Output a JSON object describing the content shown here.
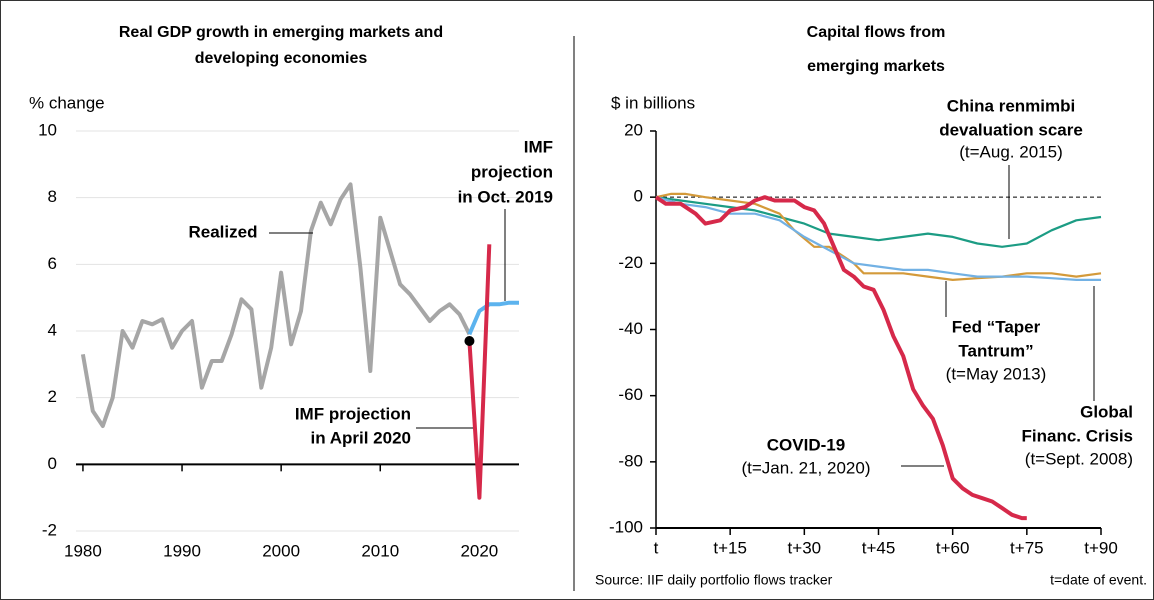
{
  "chart_data": [
    {
      "type": "line",
      "title": [
        "Real GDP growth in emerging markets and",
        "developing economies"
      ],
      "y_label": "% change",
      "xlim": [
        1979.3,
        2024
      ],
      "xticks": [
        1980,
        1990,
        2000,
        2010,
        2020
      ],
      "ylim": [
        -2,
        10
      ],
      "yticks": [
        -2,
        0,
        2,
        4,
        6,
        8,
        10
      ],
      "grid": true,
      "series": [
        {
          "label": [
            "Realized"
          ],
          "color": "#a6a6a6",
          "x": [
            1980,
            1981,
            1982,
            1983,
            1984,
            1985,
            1986,
            1987,
            1988,
            1989,
            1990,
            1991,
            1992,
            1993,
            1994,
            1995,
            1996,
            1997,
            1998,
            1999,
            2000,
            2001,
            2002,
            2003,
            2004,
            2005,
            2006,
            2007,
            2008,
            2009,
            2010,
            2011,
            2012,
            2013,
            2014,
            2015,
            2016,
            2017,
            2018,
            2019
          ],
          "values": [
            3.3,
            1.6,
            1.15,
            2.0,
            4.0,
            3.5,
            4.3,
            4.2,
            4.35,
            3.5,
            4.0,
            4.3,
            2.3,
            3.1,
            3.1,
            3.9,
            4.95,
            4.65,
            2.3,
            3.5,
            5.75,
            3.6,
            4.6,
            7.0,
            7.85,
            7.2,
            7.95,
            8.4,
            5.9,
            2.8,
            7.4,
            6.4,
            5.4,
            5.1,
            4.7,
            4.3,
            4.6,
            4.8,
            4.5,
            3.9
          ]
        },
        {
          "label": [
            "IMF",
            "projection",
            "in Oct. 2019"
          ],
          "color": "#5cb3ee",
          "x": [
            2019,
            2020,
            2021,
            2022,
            2023,
            2024
          ],
          "values": [
            3.9,
            4.6,
            4.8,
            4.8,
            4.85,
            4.85
          ]
        },
        {
          "label": [
            "IMF projection",
            "in April 2020"
          ],
          "color": "#d6294a",
          "x": [
            2019,
            2020,
            2021
          ],
          "values": [
            3.7,
            -1.0,
            6.6
          ]
        }
      ]
    },
    {
      "type": "line",
      "title": [
        "Capital flows from",
        "emerging markets"
      ],
      "y_label": "$ in billions",
      "xlim": [
        0,
        90
      ],
      "xticks": [
        {
          "value": 0,
          "label": "t"
        },
        {
          "value": 15,
          "label": "t+15"
        },
        {
          "value": 30,
          "label": "t+30"
        },
        {
          "value": 45,
          "label": "t+45"
        },
        {
          "value": 60,
          "label": "t+60"
        },
        {
          "value": 75,
          "label": "t+75"
        },
        {
          "value": 90,
          "label": "t+90"
        }
      ],
      "ylim": [
        -100,
        20
      ],
      "yticks": [
        -100,
        -80,
        -60,
        -40,
        -20,
        0,
        20
      ],
      "grid": false,
      "hline": 0,
      "series": [
        {
          "label": [
            "China renmimbi",
            "devaluation scare",
            "(t=Aug. 2015)"
          ],
          "color": "#1c9c84",
          "x": [
            0,
            5,
            10,
            15,
            20,
            25,
            30,
            35,
            40,
            45,
            50,
            55,
            60,
            65,
            70,
            75,
            80,
            85,
            90
          ],
          "values": [
            0,
            -1,
            -2,
            -3,
            -4,
            -6,
            -8,
            -11,
            -12,
            -13,
            -12,
            -11,
            -12,
            -14,
            -15,
            -14,
            -10,
            -7,
            -6
          ]
        },
        {
          "label": [
            "Fed “Taper",
            "Tantrum”",
            "(t=May 2013)"
          ],
          "color": "#d49a3a",
          "x": [
            0,
            3,
            6,
            10,
            15,
            20,
            25,
            28,
            32,
            35,
            38,
            40,
            42,
            44,
            46,
            50,
            55,
            60,
            65,
            70,
            75,
            80,
            85,
            90
          ],
          "values": [
            0,
            1,
            1,
            0,
            -1,
            -2,
            -5,
            -10,
            -15,
            -15,
            -18,
            -20,
            -23,
            -23,
            -23,
            -23,
            -24,
            -25,
            -24.5,
            -24,
            -23,
            -23,
            -24,
            -23
          ]
        },
        {
          "label": [
            "Global",
            "Financ. Crisis",
            "(t=Sept. 2008)"
          ],
          "color": "#72b1e4",
          "x": [
            0,
            5,
            10,
            15,
            20,
            25,
            30,
            35,
            40,
            45,
            50,
            55,
            60,
            65,
            70,
            75,
            80,
            85,
            90
          ],
          "values": [
            0,
            -2,
            -3,
            -5,
            -5,
            -7,
            -12,
            -16,
            -20,
            -21,
            -22,
            -22,
            -23,
            -24,
            -24,
            -24,
            -24.5,
            -25,
            -25
          ]
        },
        {
          "label": [
            "COVID-19",
            "(t=Jan. 21, 2020)"
          ],
          "color": "#d6294a",
          "x": [
            0,
            2,
            5,
            8,
            10,
            13,
            15,
            18,
            20,
            22,
            24,
            26,
            28,
            30,
            32,
            34,
            36,
            38,
            40,
            42,
            44,
            46,
            48,
            50,
            52,
            54,
            56,
            58,
            60,
            62,
            64,
            66,
            68,
            70,
            72,
            74,
            75
          ],
          "values": [
            0,
            -2,
            -2,
            -5,
            -8,
            -7,
            -4,
            -3,
            -1,
            0,
            -1,
            -1,
            -1,
            -3,
            -4,
            -8,
            -15,
            -22,
            -24,
            -27,
            -28,
            -34,
            -42,
            -48,
            -58,
            -63,
            -67,
            -75,
            -85,
            -88,
            -90,
            -91,
            -92,
            -94,
            -96,
            -97,
            -97
          ]
        }
      ]
    }
  ],
  "footer": {
    "source": "Source: IIF daily portfolio flows tracker",
    "note": "t=date of event."
  }
}
